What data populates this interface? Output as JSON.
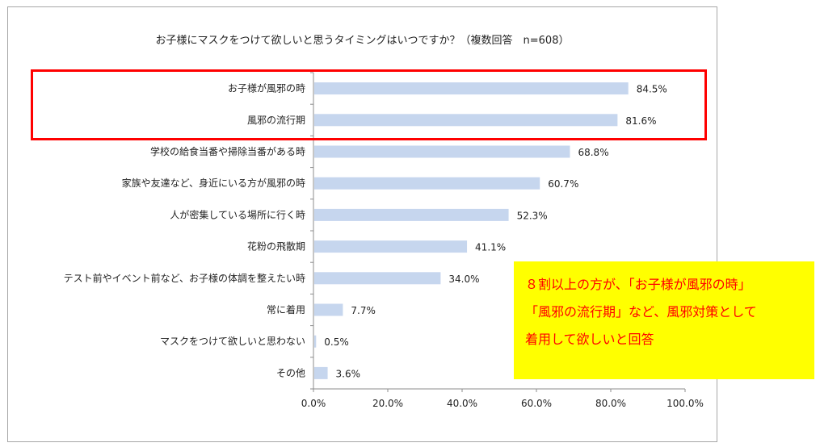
{
  "chart_data": {
    "type": "bar",
    "orientation": "horizontal",
    "title": "お子様にマスクをつけて欲しいと思うタイミングはいつですか？（複数回答　n=608）",
    "categories": [
      "お子様が風邪の時",
      "風邪の流行期",
      "学校の給食当番や掃除当番がある時",
      "家族や友達など、身近にいる方が風邪の時",
      "人が密集している場所に行く時",
      "花粉の飛散期",
      "テスト前やイベント前など、お子様の体調を整えたい時",
      "常に着用",
      "マスクをつけて欲しいと思わない",
      "その他"
    ],
    "values": [
      84.5,
      81.6,
      68.8,
      60.7,
      52.3,
      41.1,
      34.0,
      7.7,
      0.5,
      3.6
    ],
    "value_labels": [
      "84.5%",
      "81.6%",
      "68.8%",
      "60.7%",
      "52.3%",
      "41.1%",
      "34.0%",
      "7.7%",
      "0.5%",
      "3.6%"
    ],
    "xlim": [
      0,
      100
    ],
    "x_ticks": [
      "0.0%",
      "20.0%",
      "40.0%",
      "60.0%",
      "80.0%",
      "100.0%"
    ],
    "bar_color": "#c6d6ee",
    "grid": false
  },
  "annotation": {
    "highlight_color": "#ff0000",
    "callout_bg": "#ffff00",
    "callout_color": "#ff0000",
    "callout_lines": [
      "８割以上の方が、「お子様が風邪の時」",
      "「風邪の流行期」など、風邪対策として",
      "着用して欲しいと回答"
    ]
  }
}
